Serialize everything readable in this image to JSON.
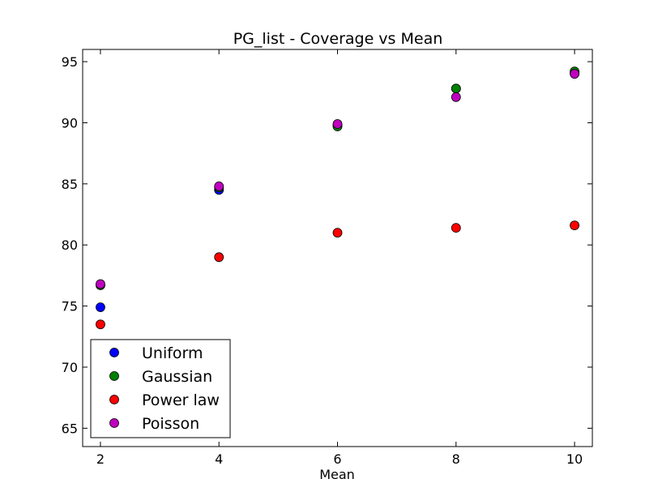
{
  "chart_data": {
    "type": "scatter",
    "title": "PG_list - Coverage vs Mean",
    "xlabel": "Mean",
    "ylabel": "",
    "xlim": [
      1.7,
      10.3
    ],
    "ylim": [
      63.5,
      96.0
    ],
    "xticks": [
      2,
      4,
      6,
      8,
      10
    ],
    "yticks": [
      65,
      70,
      75,
      80,
      85,
      90,
      95
    ],
    "grid": false,
    "legend_position": "lower-left",
    "x": [
      2,
      4,
      6,
      8,
      10
    ],
    "series": [
      {
        "name": "Uniform",
        "color": "#0000ff",
        "values": [
          74.9,
          84.5,
          89.8,
          92.8,
          94.1
        ]
      },
      {
        "name": "Gaussian",
        "color": "#008000",
        "values": [
          76.7,
          84.7,
          89.7,
          92.8,
          94.2
        ]
      },
      {
        "name": "Power law",
        "color": "#ff0000",
        "values": [
          73.5,
          79.0,
          81.0,
          81.4,
          81.6
        ]
      },
      {
        "name": "Poisson",
        "color": "#bf00bf",
        "values": [
          76.8,
          84.8,
          89.9,
          92.1,
          94.0
        ]
      }
    ]
  }
}
